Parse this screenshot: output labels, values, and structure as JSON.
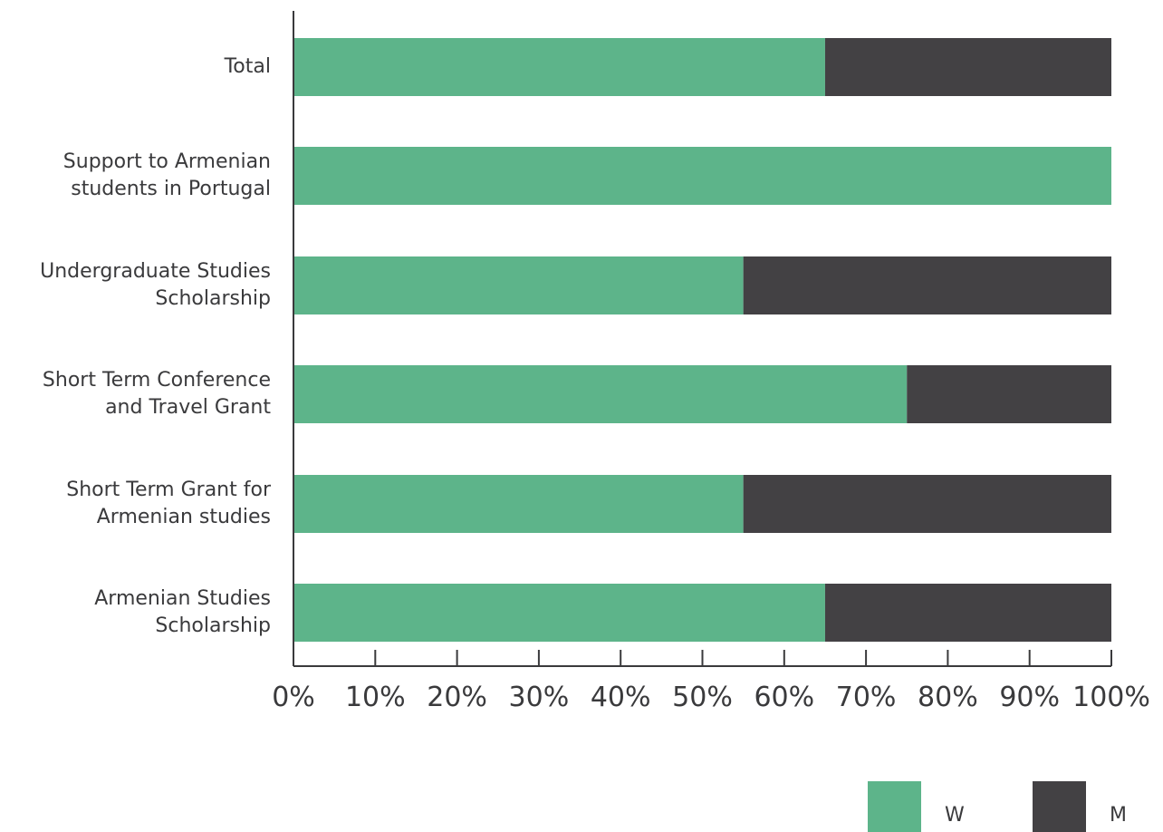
{
  "chart_data": {
    "type": "bar",
    "orientation": "horizontal",
    "stacked": true,
    "percent": true,
    "categories": [
      [
        "Total"
      ],
      [
        "Support to Armenian",
        "students in Portugal"
      ],
      [
        "Undergraduate Studies",
        "Scholarship"
      ],
      [
        "Short Term Conference",
        "and Travel Grant"
      ],
      [
        "Short Term Grant for",
        "Armenian studies"
      ],
      [
        "Armenian Studies",
        "Scholarship"
      ]
    ],
    "series": [
      {
        "name": "W",
        "color": "#5db48a",
        "values": [
          65,
          100,
          55,
          75,
          55,
          65
        ]
      },
      {
        "name": "M",
        "color": "#434144",
        "values": [
          35,
          0,
          45,
          25,
          45,
          35
        ]
      }
    ],
    "xlim": [
      0,
      100
    ],
    "xticks": [
      "0%",
      "10%",
      "20%",
      "30%",
      "40%",
      "50%",
      "60%",
      "70%",
      "80%",
      "90%",
      "100%"
    ],
    "grid": false,
    "legend_position": "bottom-right",
    "title": "",
    "xlabel": "",
    "ylabel": ""
  }
}
